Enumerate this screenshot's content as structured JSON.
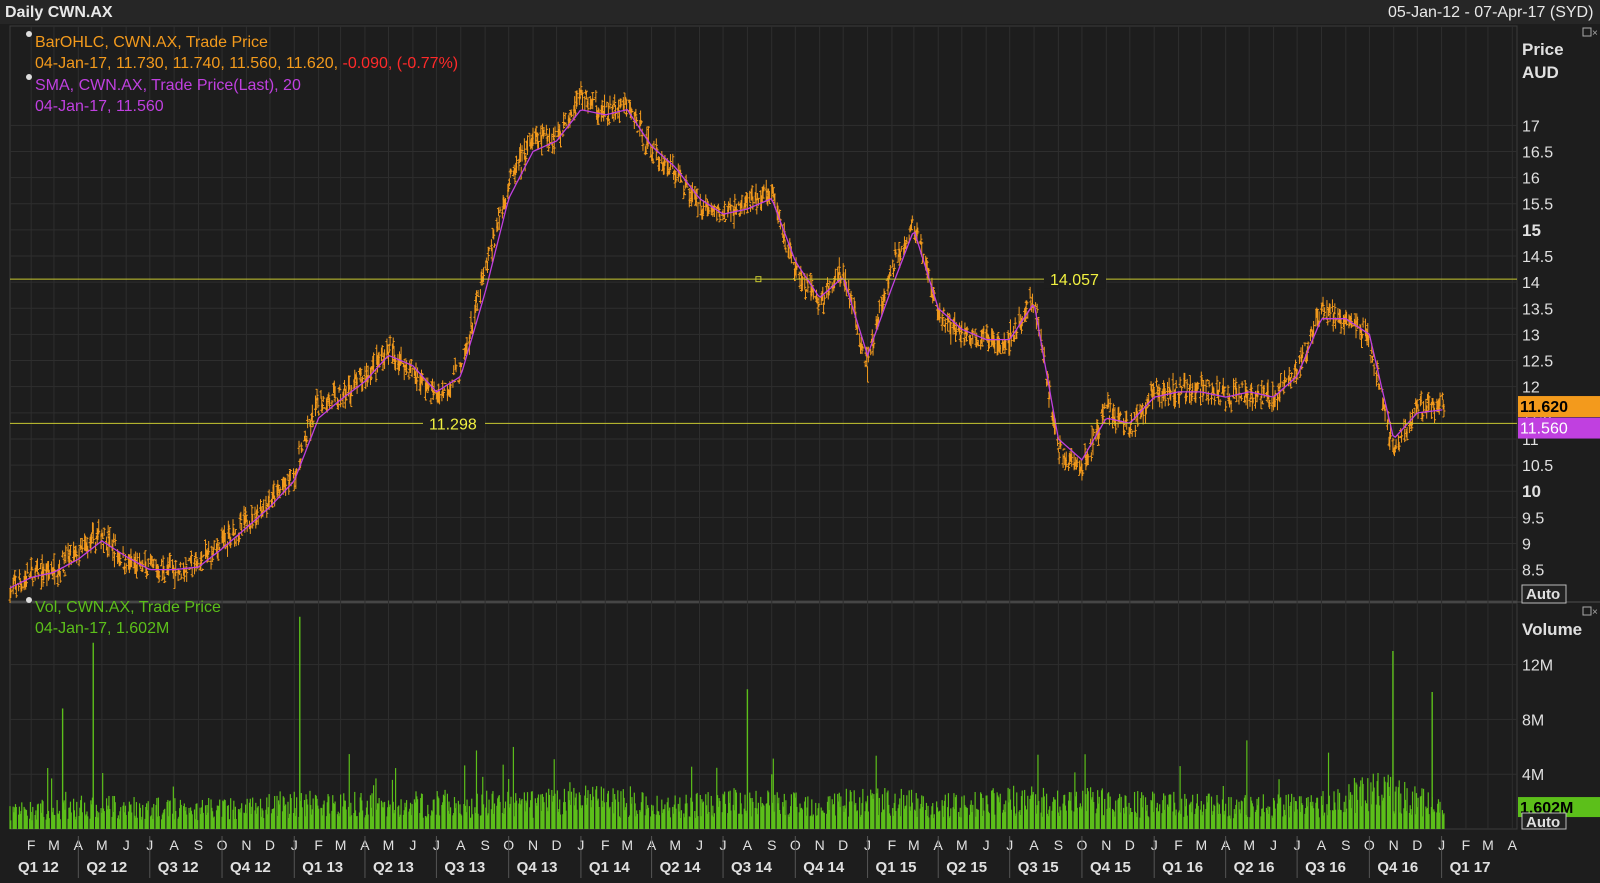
{
  "header": {
    "title": "Daily CWN.AX",
    "range": "05-Jan-12 - 07-Apr-17 (SYD)"
  },
  "price_panel": {
    "legend": [
      {
        "line1": "BarOHLC, CWN.AX, Trade Price",
        "line2a": "04-Jan-17, 11.730, 11.740, 11.560, 11.620,",
        "line2b": " -0.090, (-0.77%)"
      },
      {
        "line1": "SMA, CWN.AX, Trade Price(Last),  20",
        "line2": "04-Jan-17, 11.560"
      }
    ],
    "axis_title_1": "Price",
    "axis_title_2": "AUD",
    "auto_label": "Auto",
    "last_price_tag": "11.620",
    "sma_tag": "11.560",
    "hline_upper_label": "14.057",
    "hline_lower_label": "11.298"
  },
  "volume_panel": {
    "legend_line1": "Vol, CWN.AX, Trade Price",
    "legend_line2": "04-Jan-17, 1.602M",
    "axis_title": "Volume",
    "last_volume_tag": "1.602M",
    "auto_label": "Auto"
  },
  "colors": {
    "background": "#1d1d1d",
    "price_bars": "#f39a1c",
    "sma": "#c040e0",
    "volume": "#5cbf1a",
    "hline": "#c8c830",
    "change_negative": "#ff2a2a"
  },
  "chart_data": [
    {
      "type": "line",
      "title": "Daily CWN.AX",
      "subtitle": "05-Jan-12 - 07-Apr-17 (SYD)",
      "ylabel": "Price AUD",
      "ylim": [
        7.9,
        18.9
      ],
      "y_ticks": [
        8.5,
        9,
        9.5,
        10,
        10.5,
        11,
        11.5,
        12,
        12.5,
        13,
        13.5,
        14,
        14.5,
        15,
        15.5,
        16,
        16.5,
        17
      ],
      "y_ticks_bold": [
        10,
        15
      ],
      "grid": true,
      "horizontal_lines": [
        14.057,
        11.298
      ],
      "series": [
        {
          "name": "BarOHLC, CWN.AX, Trade Price",
          "x": [
            "2012-01-05",
            "2012-02-01",
            "2012-03-01",
            "2012-04-01",
            "2012-05-01",
            "2012-06-01",
            "2012-07-01",
            "2012-08-01",
            "2012-09-01",
            "2012-10-01",
            "2012-11-01",
            "2012-12-01",
            "2013-01-01",
            "2013-02-01",
            "2013-03-01",
            "2013-04-01",
            "2013-05-01",
            "2013-06-01",
            "2013-07-01",
            "2013-08-01",
            "2013-09-01",
            "2013-10-01",
            "2013-11-01",
            "2013-12-01",
            "2014-01-01",
            "2014-02-01",
            "2014-03-01",
            "2014-04-01",
            "2014-05-01",
            "2014-06-01",
            "2014-07-01",
            "2014-08-01",
            "2014-09-01",
            "2014-10-01",
            "2014-11-01",
            "2014-12-01",
            "2015-01-01",
            "2015-02-01",
            "2015-03-01",
            "2015-04-01",
            "2015-05-01",
            "2015-06-01",
            "2015-07-01",
            "2015-08-01",
            "2015-09-01",
            "2015-10-01",
            "2015-11-01",
            "2015-12-01",
            "2016-01-01",
            "2016-02-01",
            "2016-03-01",
            "2016-04-01",
            "2016-05-01",
            "2016-06-01",
            "2016-07-01",
            "2016-08-01",
            "2016-09-01",
            "2016-10-01",
            "2016-11-01",
            "2016-12-01",
            "2017-01-04"
          ],
          "y": [
            8.1,
            8.4,
            8.5,
            8.8,
            9.2,
            8.6,
            8.5,
            8.5,
            8.6,
            9.0,
            9.4,
            9.8,
            10.3,
            11.7,
            11.8,
            12.2,
            12.7,
            12.3,
            11.8,
            12.3,
            14.2,
            15.9,
            16.7,
            16.8,
            17.6,
            17.2,
            17.4,
            16.5,
            16.1,
            15.5,
            15.3,
            15.5,
            15.7,
            14.2,
            13.6,
            14.2,
            12.4,
            14.3,
            15.1,
            13.4,
            13.0,
            12.9,
            12.9,
            13.7,
            10.8,
            10.4,
            11.6,
            11.2,
            11.9,
            11.9,
            12.0,
            11.8,
            11.9,
            11.8,
            12.3,
            13.4,
            13.3,
            12.9,
            10.8,
            11.6,
            11.62
          ]
        },
        {
          "name": "SMA, CWN.AX, Trade Price(Last),  20",
          "x": [
            "2012-01-05",
            "2012-02-01",
            "2012-03-01",
            "2012-04-01",
            "2012-05-01",
            "2012-06-01",
            "2012-07-01",
            "2012-08-01",
            "2012-09-01",
            "2012-10-01",
            "2012-11-01",
            "2012-12-01",
            "2013-01-01",
            "2013-02-01",
            "2013-03-01",
            "2013-04-01",
            "2013-05-01",
            "2013-06-01",
            "2013-07-01",
            "2013-08-01",
            "2013-09-01",
            "2013-10-01",
            "2013-11-01",
            "2013-12-01",
            "2014-01-01",
            "2014-02-01",
            "2014-03-01",
            "2014-04-01",
            "2014-05-01",
            "2014-06-01",
            "2014-07-01",
            "2014-08-01",
            "2014-09-01",
            "2014-10-01",
            "2014-11-01",
            "2014-12-01",
            "2015-01-01",
            "2015-02-01",
            "2015-03-01",
            "2015-04-01",
            "2015-05-01",
            "2015-06-01",
            "2015-07-01",
            "2015-08-01",
            "2015-09-01",
            "2015-10-01",
            "2015-11-01",
            "2015-12-01",
            "2016-01-01",
            "2016-02-01",
            "2016-03-01",
            "2016-04-01",
            "2016-05-01",
            "2016-06-01",
            "2016-07-01",
            "2016-08-01",
            "2016-09-01",
            "2016-10-01",
            "2016-11-01",
            "2016-12-01",
            "2017-01-04"
          ],
          "y": [
            8.15,
            8.35,
            8.45,
            8.7,
            9.05,
            8.75,
            8.5,
            8.5,
            8.55,
            8.9,
            9.3,
            9.7,
            10.2,
            11.4,
            11.75,
            12.1,
            12.6,
            12.4,
            11.9,
            12.2,
            13.8,
            15.6,
            16.5,
            16.7,
            17.3,
            17.2,
            17.3,
            16.6,
            16.2,
            15.6,
            15.3,
            15.4,
            15.6,
            14.4,
            13.7,
            14.1,
            12.6,
            13.9,
            15.0,
            13.5,
            13.1,
            12.9,
            12.9,
            13.6,
            11.0,
            10.6,
            11.4,
            11.3,
            11.8,
            11.9,
            11.9,
            11.8,
            11.9,
            11.8,
            12.2,
            13.3,
            13.3,
            13.0,
            11.0,
            11.5,
            11.56
          ]
        }
      ],
      "last_values": {
        "open": 11.73,
        "high": 11.74,
        "low": 11.56,
        "close": 11.62,
        "change": -0.09,
        "change_pct": -0.77,
        "sma20": 11.56
      }
    },
    {
      "type": "bar",
      "title": "Vol, CWN.AX, Trade Price",
      "ylabel": "Volume",
      "unit": "M",
      "ylim": [
        0,
        16.5
      ],
      "y_ticks": [
        4,
        8,
        12
      ],
      "y_tick_labels": [
        "4M",
        "8M",
        "12M"
      ],
      "last_value": 1.602,
      "spikes": [
        {
          "x": "2012-03-12",
          "value": 8.8
        },
        {
          "x": "2012-04-20",
          "value": 13.6
        },
        {
          "x": "2013-01-08",
          "value": 15.5
        },
        {
          "x": "2014-08-01",
          "value": 10.2
        },
        {
          "x": "2016-10-31",
          "value": 13.0
        },
        {
          "x": "2016-12-20",
          "value": 10.0
        }
      ],
      "series": [
        {
          "name": "Vol, CWN.AX, Trade Price",
          "x": [
            "2012-01",
            "2012-04",
            "2012-07",
            "2012-10",
            "2013-01",
            "2013-04",
            "2013-07",
            "2013-10",
            "2014-01",
            "2014-04",
            "2014-07",
            "2014-10",
            "2015-01",
            "2015-04",
            "2015-07",
            "2015-10",
            "2016-01",
            "2016-04",
            "2016-07",
            "2016-10",
            "2017-01"
          ],
          "values": [
            1.6,
            2.0,
            1.8,
            1.9,
            2.4,
            2.1,
            2.3,
            2.2,
            2.6,
            2.0,
            2.4,
            2.2,
            2.5,
            2.1,
            2.6,
            2.4,
            2.2,
            2.0,
            2.1,
            3.5,
            1.6
          ]
        }
      ]
    }
  ],
  "x_axis": {
    "months": [
      "F",
      "M",
      "A",
      "M",
      "J",
      "J",
      "A",
      "S",
      "O",
      "N",
      "D",
      "J",
      "F",
      "M",
      "A",
      "M",
      "J",
      "J",
      "A",
      "S",
      "O",
      "N",
      "D",
      "J",
      "F",
      "M",
      "A",
      "M",
      "J",
      "J",
      "A",
      "S",
      "O",
      "N",
      "D",
      "J",
      "F",
      "M",
      "A",
      "M",
      "J",
      "J",
      "A",
      "S",
      "O",
      "N",
      "D",
      "J",
      "F",
      "M",
      "A",
      "M",
      "J",
      "J",
      "A",
      "S",
      "O",
      "N",
      "D",
      "J",
      "F",
      "M",
      "A"
    ],
    "quarters": [
      "Q1 12",
      "Q2 12",
      "Q3 12",
      "Q4 12",
      "Q1 13",
      "Q2 13",
      "Q3 13",
      "Q4 13",
      "Q1 14",
      "Q2 14",
      "Q3 14",
      "Q4 14",
      "Q1 15",
      "Q2 15",
      "Q3 15",
      "Q4 15",
      "Q1 16",
      "Q2 16",
      "Q3 16",
      "Q4 16",
      "Q1 17"
    ]
  }
}
